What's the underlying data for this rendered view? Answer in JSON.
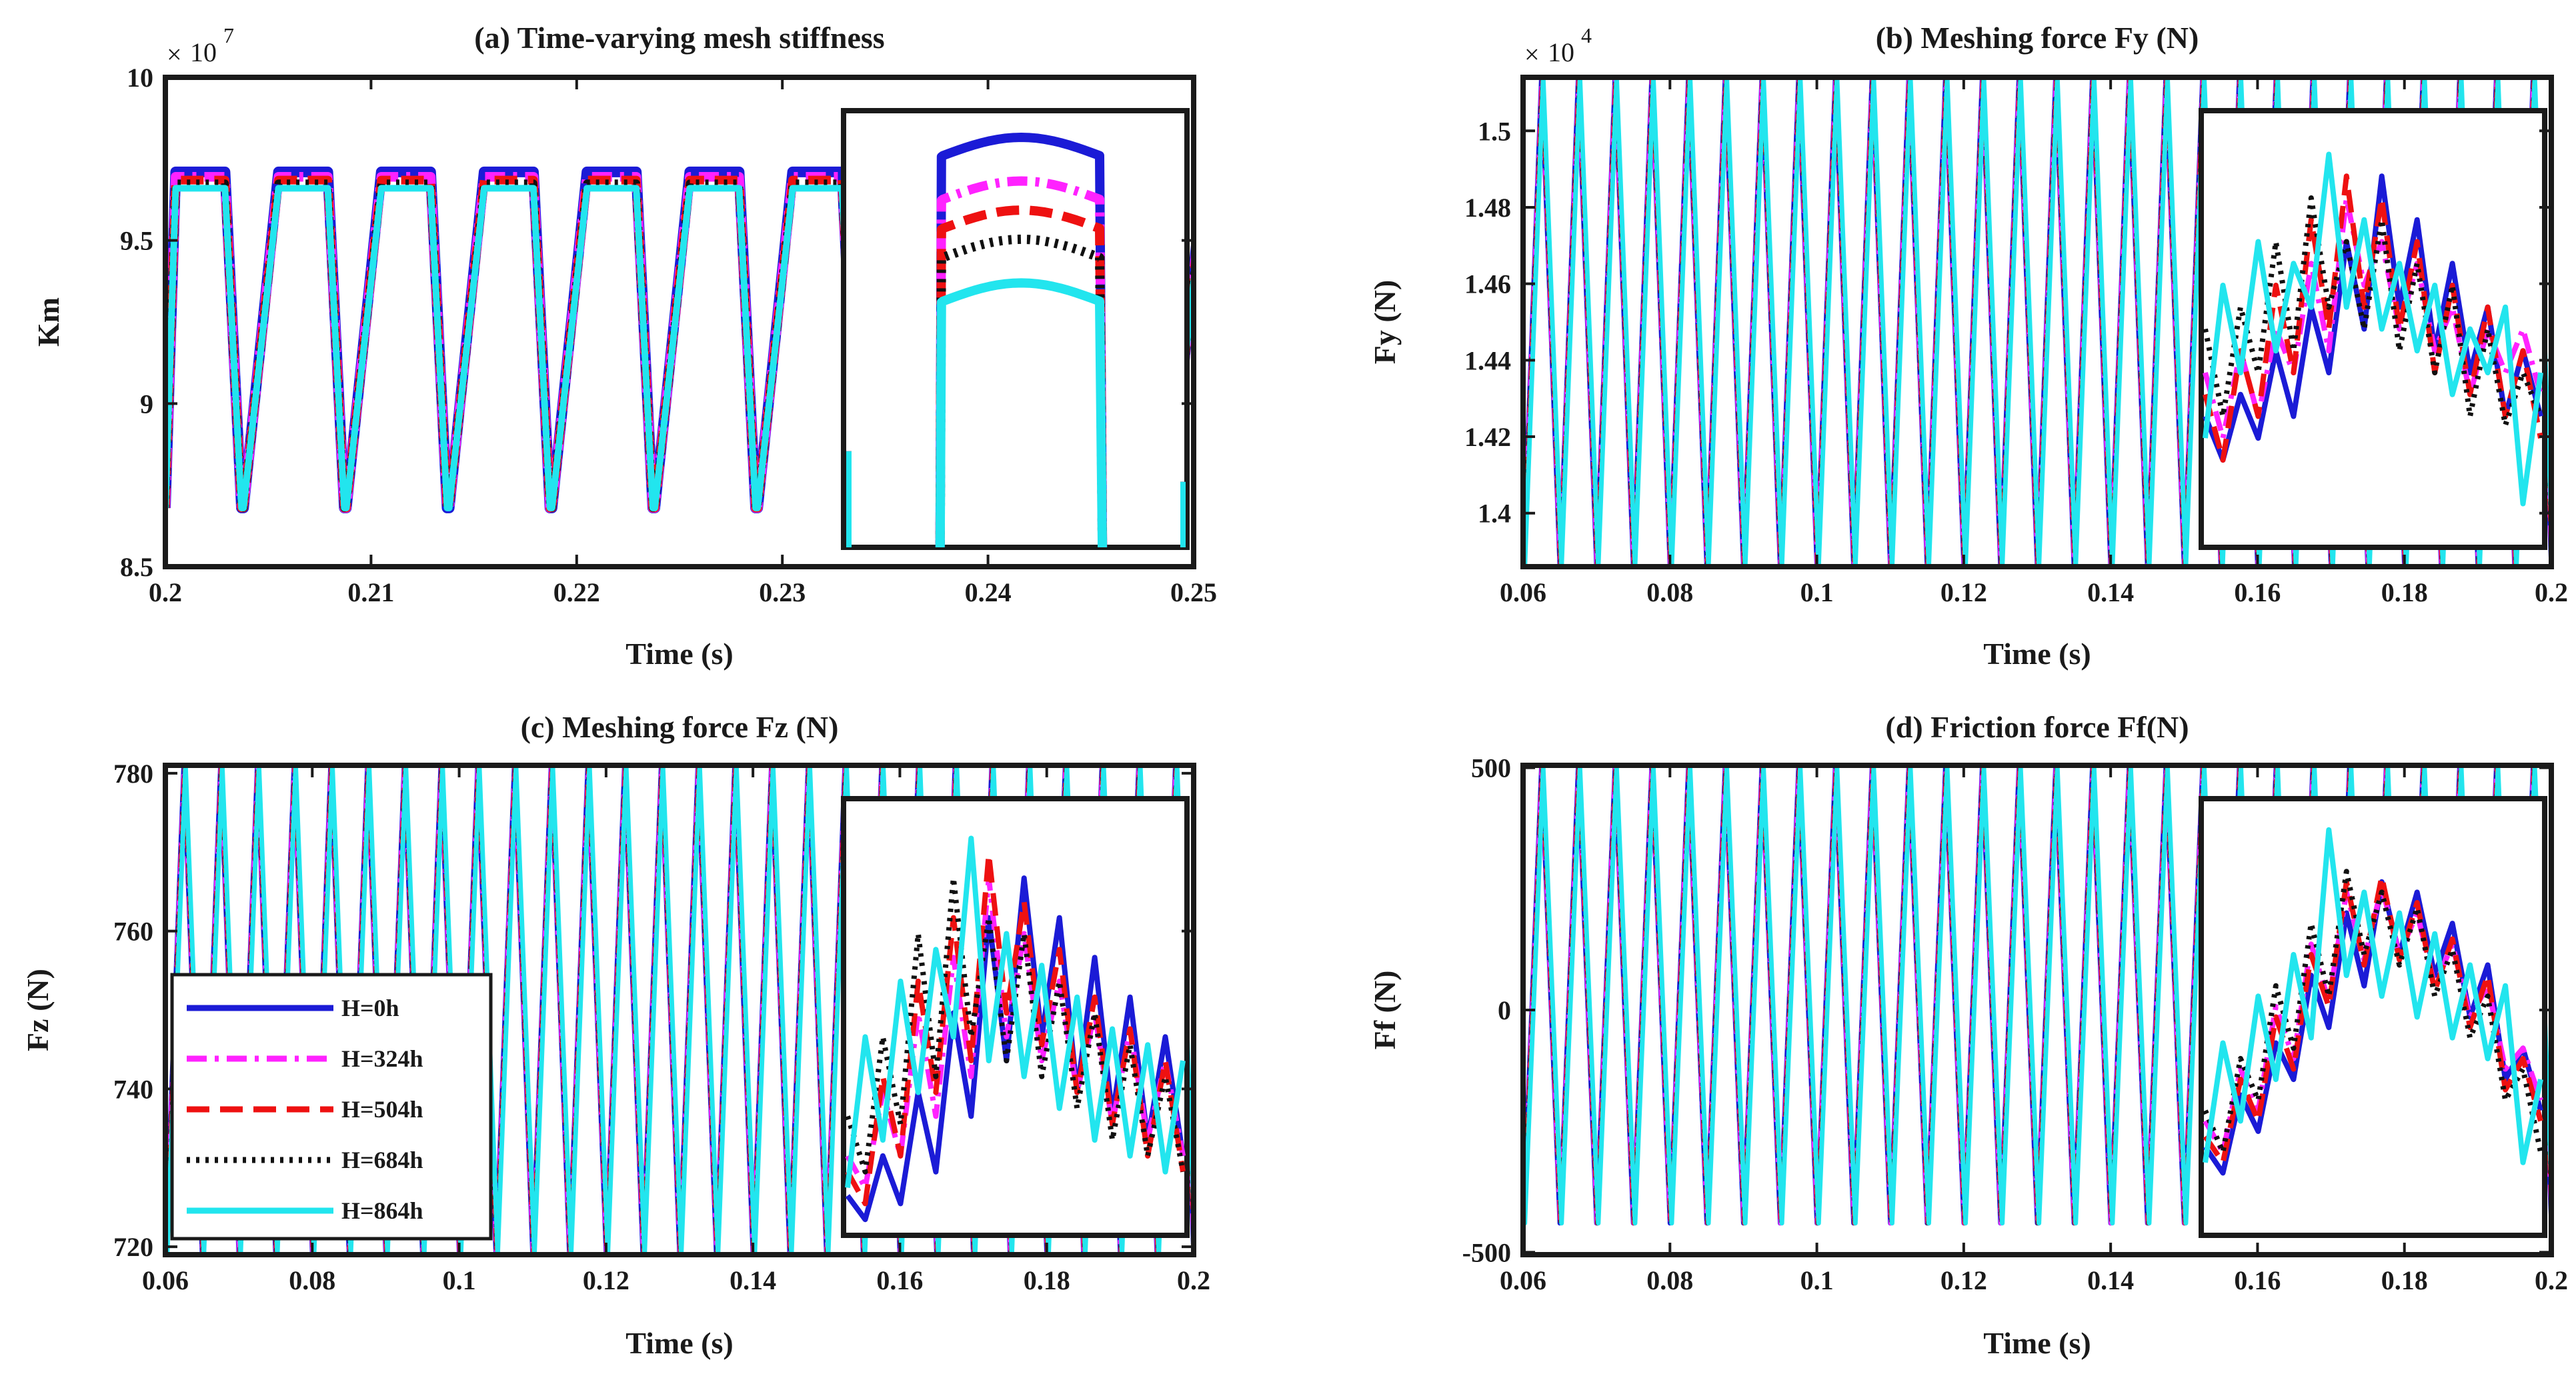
{
  "figure": {
    "background": "#ffffff",
    "axis_color": "#1a1a1a"
  },
  "series_styles": [
    {
      "name": "H=0h",
      "color": "#1b1bd6",
      "dash": "solid"
    },
    {
      "name": "H=324h",
      "color": "#ff22ff",
      "dash": "dashdot"
    },
    {
      "name": "H=504h",
      "color": "#ee1111",
      "dash": "dashed"
    },
    {
      "name": "H=684h",
      "color": "#111111",
      "dash": "dotted"
    },
    {
      "name": "H=864h",
      "color": "#22e5ee",
      "dash": "solid"
    }
  ],
  "legend": {
    "placement": "panel-c-lower-left",
    "entries": [
      "H=0h",
      "H=324h",
      "H=504h",
      "H=684h",
      "H=864h"
    ]
  },
  "chart_data": [
    {
      "type": "line",
      "panel": "a",
      "title": "(a) Time-varying mesh stiffness",
      "xlabel": "Time (s)",
      "ylabel": "Km",
      "exponent_label": "10",
      "exponent_power": "7",
      "xlim": [
        0.2,
        0.25
      ],
      "ylim": [
        8.5,
        10
      ],
      "xticks": [
        0.2,
        0.21,
        0.22,
        0.23,
        0.24,
        0.25
      ],
      "xtick_labels": [
        "0.2",
        "0.21",
        "0.22",
        "0.23",
        "0.24",
        "0.25"
      ],
      "yticks": [
        8.5,
        9,
        9.5,
        10
      ],
      "ytick_labels": [
        "8.5",
        "9",
        "9.5",
        "10"
      ],
      "periodic": {
        "period": 0.005,
        "first_peak_start": 0.2005,
        "plateau_width": 0.0024,
        "ramp_down": 0.0008,
        "ramp_up": 0.0008,
        "trough": 8.68
      },
      "series": [
        {
          "name": "H=0h",
          "plateau": 9.71
        },
        {
          "name": "H=324h",
          "plateau": 9.695
        },
        {
          "name": "H=504h",
          "plateau": 9.685
        },
        {
          "name": "H=684h",
          "plateau": 9.675
        },
        {
          "name": "H=864h",
          "plateau": 9.66
        }
      ],
      "inset": {
        "placement": "right-inner",
        "window_x": [
          0.2358,
          0.2472
        ],
        "window_y": [
          9.58,
          9.76
        ],
        "curve_offset_x": 0.0016,
        "enlarged_peak": true
      }
    },
    {
      "type": "line",
      "panel": "b",
      "title": "(b) Meshing force Fy (N)",
      "xlabel": "Time (s)",
      "ylabel": "Fy (N)",
      "exponent_label": "10",
      "exponent_power": "4",
      "xlim": [
        0.06,
        0.2
      ],
      "ylim": [
        1.386,
        1.514
      ],
      "xticks": [
        0.06,
        0.08,
        0.1,
        0.12,
        0.14,
        0.16,
        0.18,
        0.2
      ],
      "xtick_labels": [
        "0.06",
        "0.08",
        "0.1",
        "0.12",
        "0.14",
        "0.16",
        "0.18",
        "0.2"
      ],
      "yticks": [
        1.4,
        1.42,
        1.44,
        1.46,
        1.48,
        1.5
      ],
      "ytick_labels": [
        "1.4",
        "1.42",
        "1.44",
        "1.46",
        "1.48",
        "1.5"
      ],
      "oscillation": {
        "period": 0.005,
        "min": 1.386,
        "max": 1.514
      },
      "inset": {
        "placement": "right-inner",
        "x": [
          0,
          1,
          2,
          3,
          4,
          5,
          6,
          7,
          8,
          9,
          10,
          11,
          12,
          13,
          14,
          15,
          16,
          17,
          18,
          19
        ],
        "ylim": [
          1.4,
          1.5
        ],
        "series": [
          {
            "name": "H=0h",
            "values": [
              1.43,
              1.42,
              1.435,
              1.425,
              1.445,
              1.43,
              1.455,
              1.44,
              1.47,
              1.45,
              1.485,
              1.455,
              1.475,
              1.445,
              1.465,
              1.44,
              1.455,
              1.43,
              1.445,
              1.43
            ]
          },
          {
            "name": "H=324h",
            "values": [
              1.44,
              1.425,
              1.445,
              1.43,
              1.45,
              1.44,
              1.465,
              1.445,
              1.48,
              1.46,
              1.47,
              1.45,
              1.465,
              1.445,
              1.455,
              1.435,
              1.45,
              1.44,
              1.45,
              1.435
            ]
          },
          {
            "name": "H=504h",
            "values": [
              1.435,
              1.42,
              1.445,
              1.43,
              1.46,
              1.44,
              1.475,
              1.45,
              1.485,
              1.455,
              1.48,
              1.45,
              1.47,
              1.44,
              1.46,
              1.435,
              1.455,
              1.43,
              1.445,
              1.425
            ]
          },
          {
            "name": "H=684h",
            "values": [
              1.45,
              1.43,
              1.455,
              1.44,
              1.47,
              1.445,
              1.48,
              1.455,
              1.47,
              1.45,
              1.475,
              1.445,
              1.465,
              1.44,
              1.46,
              1.43,
              1.45,
              1.428,
              1.44,
              1.43
            ]
          },
          {
            "name": "H=864h",
            "values": [
              1.425,
              1.46,
              1.44,
              1.47,
              1.445,
              1.465,
              1.455,
              1.49,
              1.455,
              1.475,
              1.45,
              1.465,
              1.445,
              1.46,
              1.435,
              1.45,
              1.44,
              1.455,
              1.41,
              1.44
            ]
          }
        ]
      }
    },
    {
      "type": "line",
      "panel": "c",
      "title": "(c) Meshing force Fz (N)",
      "xlabel": "Time (s)",
      "ylabel": "Fz (N)",
      "xlim": [
        0.06,
        0.2
      ],
      "ylim": [
        719,
        781
      ],
      "xticks": [
        0.06,
        0.08,
        0.1,
        0.12,
        0.14,
        0.16,
        0.18,
        0.2
      ],
      "xtick_labels": [
        "0.06",
        "0.08",
        "0.1",
        "0.12",
        "0.14",
        "0.16",
        "0.18",
        "0.2"
      ],
      "yticks": [
        720,
        740,
        760,
        780
      ],
      "ytick_labels": [
        "720",
        "740",
        "760",
        "780"
      ],
      "oscillation": {
        "period": 0.005,
        "min": 719,
        "max": 781
      },
      "inset": {
        "placement": "right-inner",
        "x": [
          0,
          1,
          2,
          3,
          4,
          5,
          6,
          7,
          8,
          9,
          10,
          11,
          12,
          13,
          14,
          15,
          16,
          17,
          18,
          19
        ],
        "ylim": [
          720,
          775
        ],
        "series": [
          {
            "name": "H=0h",
            "values": [
              725,
              722,
              730,
              724,
              738,
              728,
              748,
              735,
              760,
              742,
              765,
              745,
              760,
              738,
              755,
              735,
              750,
              732,
              745,
              730
            ]
          },
          {
            "name": "H=324h",
            "values": [
              730,
              726,
              738,
              730,
              748,
              735,
              755,
              740,
              765,
              745,
              758,
              742,
              752,
              738,
              748,
              734,
              746,
              732,
              742,
              730
            ]
          },
          {
            "name": "H=504h",
            "values": [
              728,
              724,
              740,
              730,
              752,
              738,
              760,
              742,
              768,
              748,
              762,
              744,
              756,
              738,
              750,
              734,
              746,
              730,
              742,
              728
            ]
          },
          {
            "name": "H=684h",
            "values": [
              735,
              728,
              745,
              734,
              758,
              740,
              765,
              745,
              760,
              742,
              758,
              740,
              752,
              736,
              748,
              732,
              744,
              730,
              740,
              728
            ]
          },
          {
            "name": "H=864h",
            "values": [
              726,
              745,
              732,
              752,
              738,
              756,
              745,
              770,
              742,
              758,
              740,
              754,
              736,
              750,
              732,
              746,
              730,
              744,
              728,
              742
            ]
          }
        ]
      }
    },
    {
      "type": "line",
      "panel": "d",
      "title": "(d) Friction force Ff(N)",
      "xlabel": "Time (s)",
      "ylabel": "Ff (N)",
      "xlim": [
        0.06,
        0.2
      ],
      "ylim": [
        -505,
        505
      ],
      "xticks": [
        0.06,
        0.08,
        0.1,
        0.12,
        0.14,
        0.16,
        0.18,
        0.2
      ],
      "xtick_labels": [
        "0.06",
        "0.08",
        "0.1",
        "0.12",
        "0.14",
        "0.16",
        "0.18",
        "0.2"
      ],
      "yticks": [
        -500,
        0,
        500
      ],
      "ytick_labels": [
        "-500",
        "0",
        "500"
      ],
      "oscillation": {
        "period": 0.005,
        "min": -440,
        "max": 500
      },
      "inset": {
        "placement": "right-inner",
        "x": [
          0,
          1,
          2,
          3,
          4,
          5,
          6,
          7,
          8,
          9,
          10,
          11,
          12,
          13,
          14,
          15,
          16,
          17,
          18,
          19
        ],
        "ylim": [
          -420,
          420
        ],
        "series": [
          {
            "name": "H=0h",
            "values": [
              -250,
              -300,
              -150,
              -220,
              -50,
              -120,
              80,
              -20,
              200,
              60,
              260,
              120,
              240,
              80,
              180,
              0,
              100,
              -120,
              -60,
              -180
            ]
          },
          {
            "name": "H=324h",
            "values": [
              -200,
              -260,
              -100,
              -180,
              20,
              -80,
              140,
              30,
              240,
              110,
              250,
              120,
              200,
              60,
              140,
              0,
              60,
              -100,
              -60,
              -160
            ]
          },
          {
            "name": "H=504h",
            "values": [
              -230,
              -280,
              -120,
              -200,
              0,
              -100,
              120,
              20,
              260,
              100,
              270,
              110,
              220,
              50,
              150,
              -20,
              80,
              -140,
              -80,
              -200
            ]
          },
          {
            "name": "H=684h",
            "values": [
              -180,
              -260,
              -80,
              -160,
              60,
              -60,
              180,
              40,
              280,
              120,
              240,
              100,
              210,
              40,
              130,
              -40,
              40,
              -160,
              -100,
              -260
            ]
          },
          {
            "name": "H=864h",
            "values": [
              -280,
              -50,
              -200,
              40,
              -120,
              120,
              -40,
              360,
              80,
              240,
              40,
              200,
              0,
              160,
              -40,
              100,
              -80,
              60,
              -280,
              -120
            ]
          }
        ]
      }
    }
  ]
}
